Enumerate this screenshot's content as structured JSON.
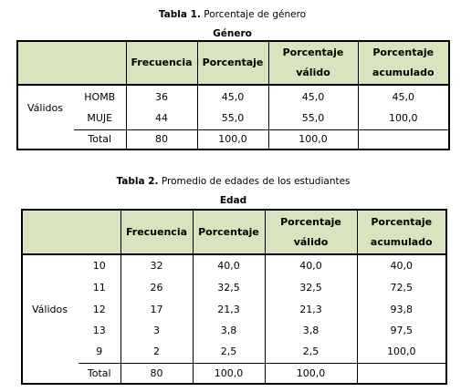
{
  "table1": {
    "caption_label": "Tabla 1.",
    "caption": "Porcentaje de género",
    "group": "Género",
    "header": [
      "Frecuencia",
      "Porcentaje",
      "Porcentaje válido",
      "Porcentaje acumulado"
    ],
    "row_group": "Válidos",
    "rows": [
      [
        "HOMB",
        "36",
        "45,0",
        "45,0",
        "45,0"
      ],
      [
        "MUJE",
        "44",
        "55,0",
        "55,0",
        "100,0"
      ]
    ],
    "total": [
      "Total",
      "80",
      "100,0",
      "100,0"
    ]
  },
  "table2": {
    "caption_label": "Tabla 2.",
    "caption": "Promedio de edades de los estudiantes",
    "group": "Edad",
    "header": [
      "Frecuencia",
      "Porcentaje",
      "Porcentaje válido",
      "Porcentaje acumulado"
    ],
    "row_group": "Válidos",
    "rows": [
      [
        "10",
        "32",
        "40,0",
        "40,0",
        "40,0"
      ],
      [
        "11",
        "26",
        "32,5",
        "32,5",
        "72,5"
      ],
      [
        "12",
        "17",
        "21,3",
        "21,3",
        "93,8"
      ],
      [
        "13",
        "3",
        "3,8",
        "3,8",
        "97,5"
      ],
      [
        "9",
        "2",
        "2,5",
        "2,5",
        "100,0"
      ]
    ],
    "total": [
      "Total",
      "80",
      "100,0",
      "100,0"
    ]
  }
}
